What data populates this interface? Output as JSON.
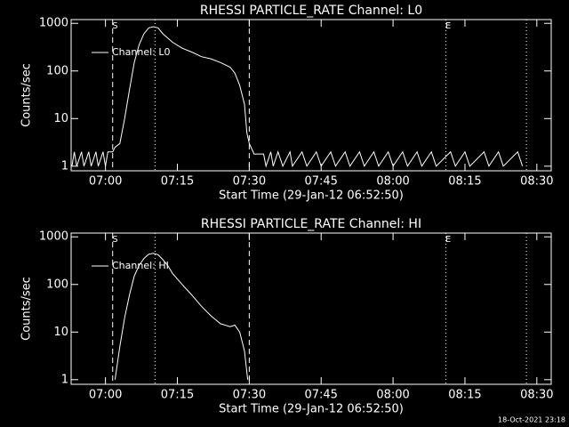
{
  "chart_data": [
    {
      "type": "line",
      "title": "RHESSI PARTICLE_RATE Channel: L0",
      "ylabel": "Counts/sec",
      "xlabel": "Start Time (29-Jan-12 06:52:50)",
      "log_y": true,
      "ylim": [
        0.8,
        1200
      ],
      "yticks": [
        1,
        10,
        100,
        1000
      ],
      "xlim": [
        "06:52:50",
        "08:33:00"
      ],
      "xticks": [
        "07:00",
        "07:15",
        "07:30",
        "07:45",
        "08:00",
        "08:15",
        "08:30"
      ],
      "legend": "upper left",
      "vlines": [
        {
          "x": "07:01:30",
          "style": "dashed"
        },
        {
          "x": "07:10:20",
          "style": "dotted"
        },
        {
          "x": "07:30:00",
          "style": "dashed"
        },
        {
          "x": "08:11:00",
          "style": "dotted"
        },
        {
          "x": "08:27:50",
          "style": "dotted"
        }
      ],
      "annotations": [
        {
          "text": "S",
          "x": "07:02:00"
        },
        {
          "text": "E",
          "x": "08:11:30"
        }
      ],
      "x": [
        "06:53:00",
        "06:53:30",
        "06:54:00",
        "06:55:00",
        "06:55:30",
        "06:56:30",
        "06:57:00",
        "06:58:00",
        "06:58:30",
        "06:59:30",
        "07:00:00",
        "07:00:30",
        "07:01:30",
        "07:02:00",
        "07:03:00",
        "07:04:00",
        "07:05:00",
        "07:06:00",
        "07:07:00",
        "07:08:00",
        "07:09:00",
        "07:10:00",
        "07:11:00",
        "07:12:00",
        "07:14:00",
        "07:16:00",
        "07:18:00",
        "07:20:00",
        "07:22:00",
        "07:24:00",
        "07:26:00",
        "07:27:00",
        "07:28:00",
        "07:29:00",
        "07:29:30",
        "07:30:00",
        "07:31:00",
        "07:33:00",
        "07:33:30",
        "07:34:30",
        "07:35:00",
        "07:36:00",
        "07:37:00",
        "07:38:30",
        "07:39:00",
        "07:41:00",
        "07:42:00",
        "07:44:00",
        "07:45:00",
        "07:47:00",
        "07:48:00",
        "07:50:00",
        "07:51:00",
        "07:53:00",
        "07:54:00",
        "07:56:00",
        "07:57:00",
        "07:59:00",
        "08:00:00",
        "08:02:00",
        "08:03:00",
        "08:05:00",
        "08:06:00",
        "08:08:00",
        "08:09:00",
        "08:12:00",
        "08:13:00",
        "08:15:00",
        "08:16:00",
        "08:19:00",
        "08:20:00",
        "08:22:00",
        "08:23:00",
        "08:26:00",
        "08:27:00"
      ],
      "series": [
        {
          "name": "Channel: L0",
          "color": "#ffffff",
          "values": [
            1,
            2,
            1,
            2,
            1,
            2,
            1,
            2,
            1,
            2,
            1,
            2,
            2,
            2.5,
            3,
            10,
            40,
            150,
            350,
            600,
            800,
            850,
            800,
            600,
            400,
            300,
            250,
            200,
            180,
            150,
            120,
            90,
            50,
            20,
            5,
            3,
            1.8,
            1.8,
            1,
            2,
            1,
            2,
            1,
            2,
            1,
            2,
            1,
            2,
            1,
            2,
            1,
            2,
            1,
            2,
            1,
            2,
            1,
            2,
            1,
            2,
            1,
            2,
            1,
            2,
            1,
            2,
            1,
            2,
            1,
            2,
            1,
            2,
            1,
            2,
            1
          ]
        }
      ]
    },
    {
      "type": "line",
      "title": "RHESSI PARTICLE_RATE Channel: HI",
      "ylabel": "Counts/sec",
      "xlabel": "Start Time (29-Jan-12 06:52:50)",
      "log_y": true,
      "ylim": [
        0.8,
        1200
      ],
      "yticks": [
        1,
        10,
        100,
        1000
      ],
      "xlim": [
        "06:52:50",
        "08:33:00"
      ],
      "xticks": [
        "07:00",
        "07:15",
        "07:30",
        "07:45",
        "08:00",
        "08:15",
        "08:30"
      ],
      "legend": "upper left",
      "vlines": [
        {
          "x": "07:01:30",
          "style": "dashed"
        },
        {
          "x": "07:10:20",
          "style": "dotted"
        },
        {
          "x": "07:30:00",
          "style": "dashed"
        },
        {
          "x": "08:11:00",
          "style": "dotted"
        },
        {
          "x": "08:27:50",
          "style": "dotted"
        }
      ],
      "annotations": [
        {
          "text": "S",
          "x": "07:02:00"
        },
        {
          "text": "E",
          "x": "08:11:30"
        }
      ],
      "x": [
        "07:02:00",
        "07:03:00",
        "07:04:00",
        "07:05:00",
        "07:06:00",
        "07:07:00",
        "07:08:00",
        "07:09:00",
        "07:10:00",
        "07:11:00",
        "07:12:00",
        "07:13:00",
        "07:14:00",
        "07:16:00",
        "07:18:00",
        "07:20:00",
        "07:22:00",
        "07:24:00",
        "07:26:00",
        "07:27:00",
        "07:28:00",
        "07:29:00",
        "07:29:40"
      ],
      "series": [
        {
          "name": "Channel: HI",
          "color": "#ffffff",
          "values": [
            1,
            5,
            20,
            60,
            150,
            250,
            350,
            430,
            450,
            420,
            330,
            250,
            170,
            100,
            60,
            35,
            22,
            15,
            13,
            14,
            10,
            4,
            1
          ]
        }
      ]
    }
  ],
  "footer": "18-Oct-2021 23:18"
}
